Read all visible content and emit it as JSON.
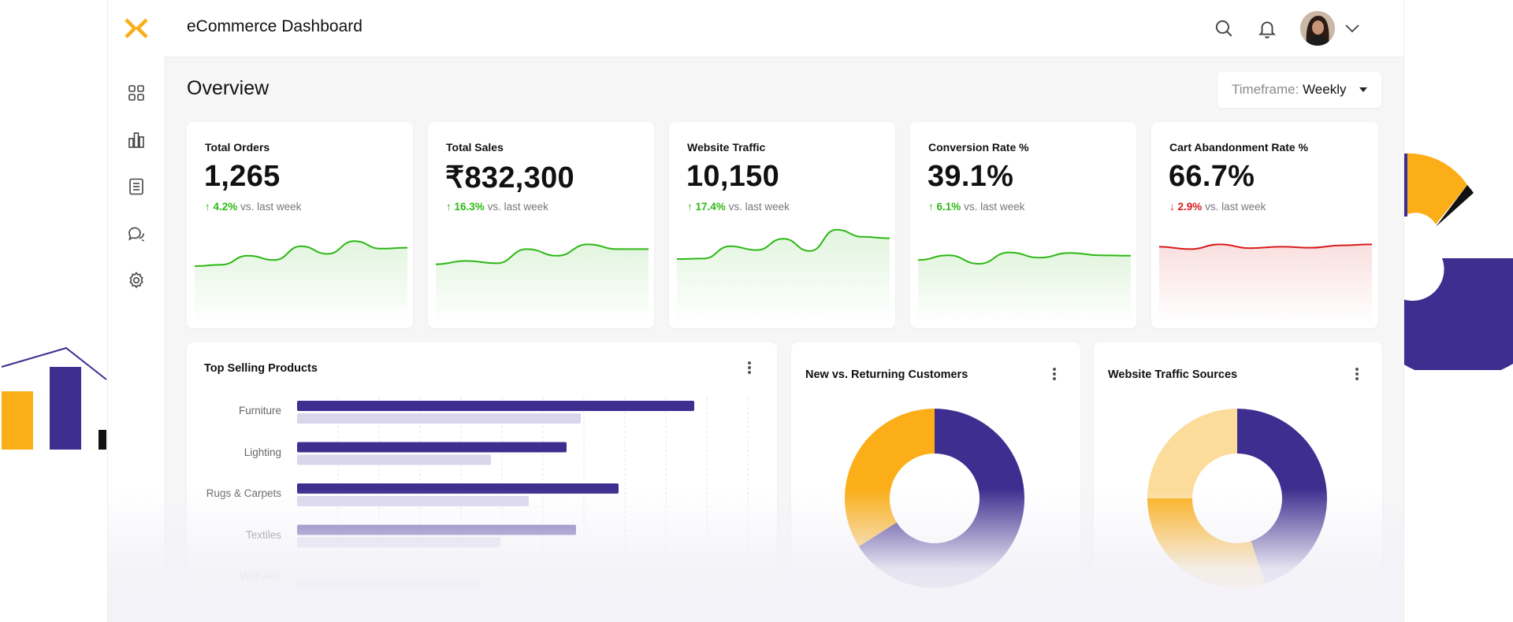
{
  "app": {
    "title": "eCommerce Dashboard",
    "logo_icon": "brand-x-logo",
    "accent": "#FBAE17",
    "primary": "#3D2E8F"
  },
  "sidebar": {
    "items": [
      {
        "icon": "grid-icon"
      },
      {
        "icon": "bar-chart-icon"
      },
      {
        "icon": "document-icon"
      },
      {
        "icon": "chat-icon"
      },
      {
        "icon": "settings-icon"
      }
    ]
  },
  "header": {
    "icons": [
      "search-icon",
      "bell-icon",
      "avatar",
      "chevron-down-icon"
    ]
  },
  "overview": {
    "title": "Overview",
    "timeframe_label": "Timeframe:",
    "timeframe_value": "Weekly"
  },
  "kpis": [
    {
      "label": "Total Orders",
      "value": "1,265",
      "delta": "4.2%",
      "compare": "vs. last week",
      "direction": "up",
      "color": "#2DB814",
      "trend": [
        2,
        2.3,
        4.2,
        3.3,
        6.2,
        4.6,
        7.3,
        5.7,
        5.9
      ]
    },
    {
      "label": "Total Sales",
      "value": "₹832,300",
      "delta": "16.3%",
      "compare": "vs. last week",
      "direction": "up",
      "color": "#2DB814",
      "trend": [
        2.4,
        3.1,
        2.6,
        5.6,
        4.2,
        6.6,
        5.6,
        5.6
      ]
    },
    {
      "label": "Website Traffic",
      "value": "10,150",
      "delta": "17.4%",
      "compare": "vs. last week",
      "direction": "up",
      "color": "#2DB814",
      "trend": [
        3.5,
        3.6,
        6.2,
        5.4,
        7.8,
        5.2,
        9.7,
        8.2,
        7.9
      ]
    },
    {
      "label": "Conversion Rate %",
      "value": "39.1%",
      "delta": "6.1%",
      "compare": "vs. last week",
      "direction": "up",
      "color": "#2DB814",
      "trend": [
        3.3,
        4.3,
        2.5,
        4.9,
        3.8,
        4.8,
        4.3,
        4.2
      ]
    },
    {
      "label": "Cart Abandonment Rate %",
      "value": "66.7%",
      "delta": "2.9%",
      "compare": "vs. last week",
      "direction": "down",
      "color": "#D81B1B",
      "trend": [
        6.1,
        5.6,
        6.6,
        5.8,
        6.1,
        5.9,
        6.4,
        6.6
      ]
    }
  ],
  "chart_data": [
    {
      "type": "bar",
      "title": "Top Selling Products",
      "categories": [
        "Furniture",
        "Lighting",
        "Rugs & Carpets",
        "Textiles",
        "Wall Arts"
      ],
      "series": [
        {
          "values": [
            84,
            57,
            68,
            59,
            null
          ],
          "color": "#3D2E8F"
        },
        {
          "values": [
            60,
            41,
            49,
            43,
            39
          ],
          "color": "#D9D6EC"
        }
      ]
    },
    {
      "type": "pie",
      "title": "New vs. Returning Customers",
      "values": [
        66,
        34
      ],
      "colors": [
        "#3D2E8F",
        "#FBAE17"
      ]
    },
    {
      "type": "pie",
      "title": "Website Traffic Sources",
      "values": [
        45,
        30,
        25
      ],
      "colors": [
        "#3D2E8F",
        "#FBAE17",
        "#FCDC9A"
      ]
    }
  ]
}
